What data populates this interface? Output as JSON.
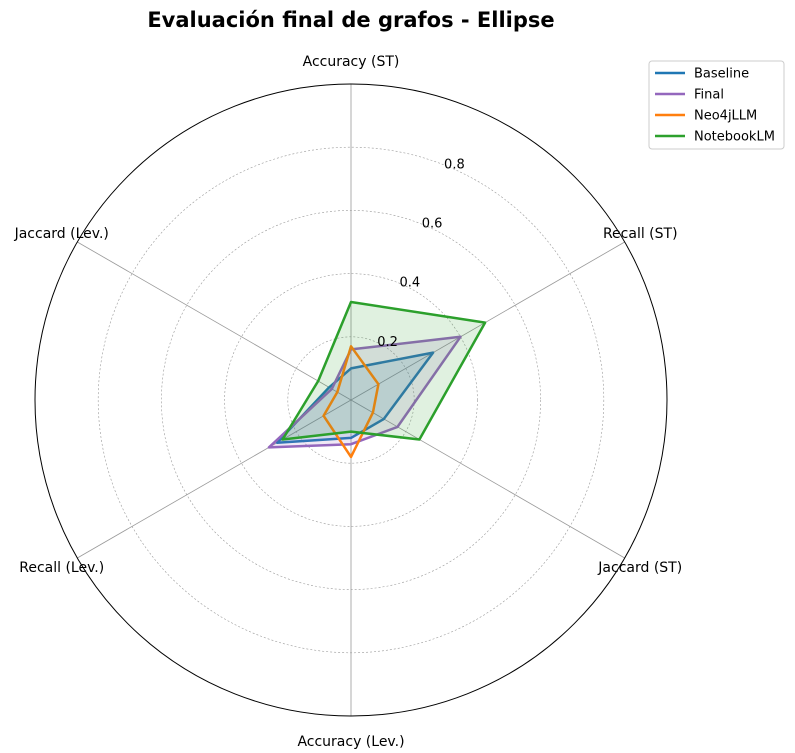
{
  "chart_data": {
    "type": "radar",
    "title": "Evaluación final de grafos - Ellipse",
    "axes": [
      "Accuracy (ST)",
      "Recall (ST)",
      "Jaccard (ST)",
      "Accuracy (Lev.)",
      "Recall (Lev.)",
      "Jaccard (Lev.)"
    ],
    "rlim": [
      0,
      1.0
    ],
    "rticks": [
      0.2,
      0.4,
      0.6,
      0.8
    ],
    "rtick_labels": [
      "0.2",
      "0.4",
      "0.6",
      "0.8"
    ],
    "grid": true,
    "legend_position": "top-right",
    "series": [
      {
        "name": "Baseline",
        "color": "#1f77b4",
        "values": [
          0.1,
          0.3,
          0.12,
          0.12,
          0.27,
          0.08
        ],
        "fill": true
      },
      {
        "name": "Final",
        "color": "#9467bd",
        "values": [
          0.16,
          0.4,
          0.17,
          0.14,
          0.3,
          0.07
        ],
        "fill": true
      },
      {
        "name": "Neo4jLLM",
        "color": "#ff7f0e",
        "values": [
          0.17,
          0.1,
          0.08,
          0.18,
          0.1,
          0.05
        ],
        "fill": false
      },
      {
        "name": "NotebookLM",
        "color": "#2ca02c",
        "values": [
          0.31,
          0.49,
          0.25,
          0.1,
          0.25,
          0.12
        ],
        "fill": true
      }
    ]
  }
}
